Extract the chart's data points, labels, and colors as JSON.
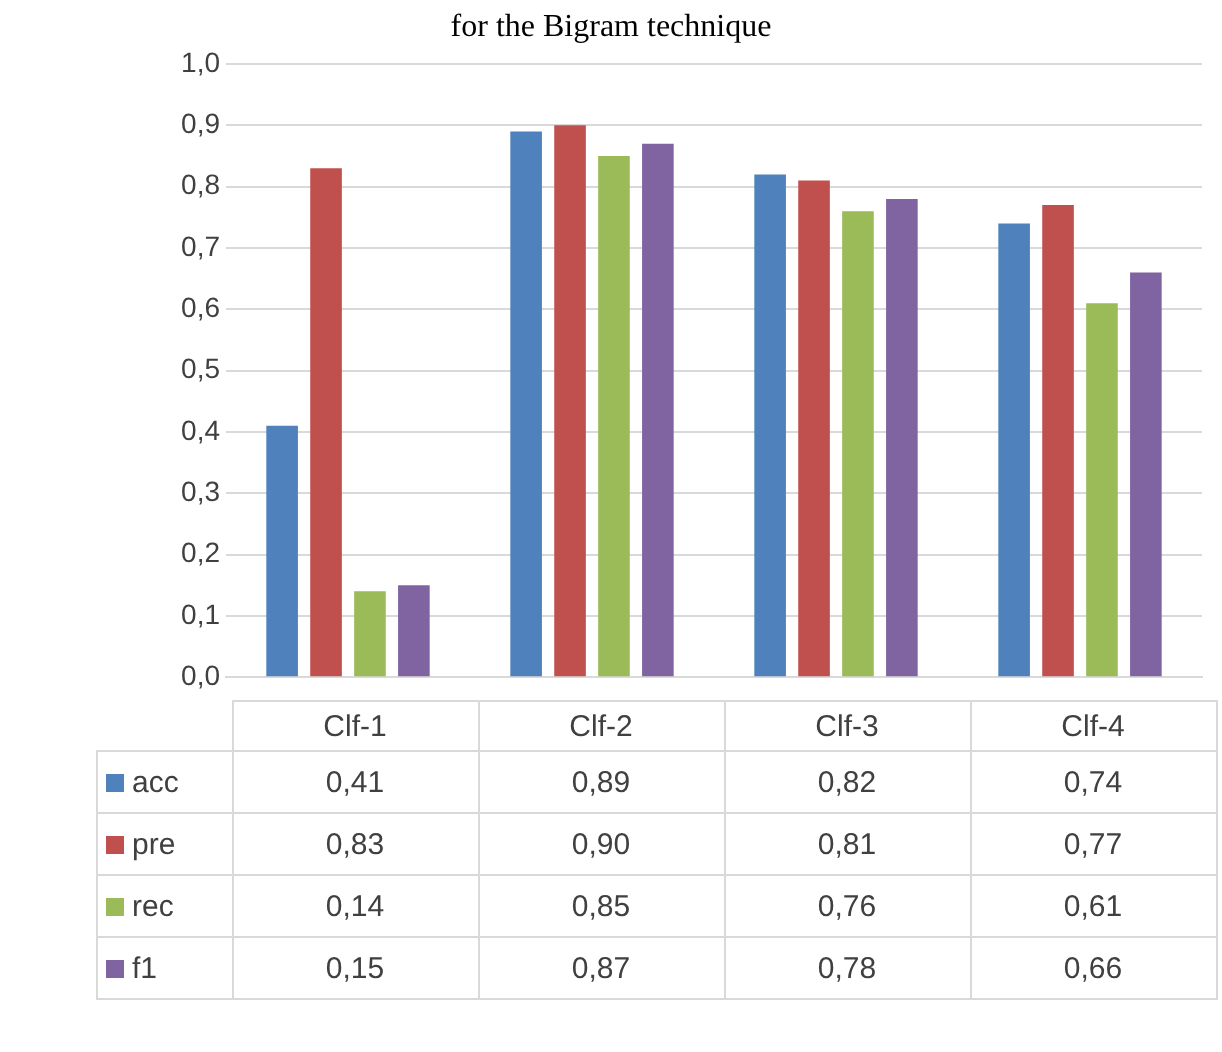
{
  "chart_data": {
    "type": "bar",
    "title": "for the Bigram technique",
    "categories": [
      "Clf-1",
      "Clf-2",
      "Clf-3",
      "Clf-4"
    ],
    "series": [
      {
        "name": "acc",
        "color": "#4f81bd",
        "values": [
          0.41,
          0.89,
          0.82,
          0.74
        ],
        "value_labels": [
          "0,41",
          "0,89",
          "0,82",
          "0,74"
        ]
      },
      {
        "name": "pre",
        "color": "#c0504d",
        "values": [
          0.83,
          0.9,
          0.81,
          0.77
        ],
        "value_labels": [
          "0,83",
          "0,90",
          "0,81",
          "0,77"
        ]
      },
      {
        "name": "rec",
        "color": "#9bbb59",
        "values": [
          0.14,
          0.85,
          0.76,
          0.61
        ],
        "value_labels": [
          "0,14",
          "0,85",
          "0,76",
          "0,61"
        ]
      },
      {
        "name": "f1",
        "color": "#8064a2",
        "values": [
          0.15,
          0.87,
          0.78,
          0.66
        ],
        "value_labels": [
          "0,15",
          "0,87",
          "0,78",
          "0,66"
        ]
      }
    ],
    "ylim": [
      0,
      1
    ],
    "yticks": [
      {
        "value": 0,
        "label": "0,0"
      },
      {
        "value": 0.1,
        "label": "0,1"
      },
      {
        "value": 0.2,
        "label": "0,2"
      },
      {
        "value": 0.3,
        "label": "0,3"
      },
      {
        "value": 0.4,
        "label": "0,4"
      },
      {
        "value": 0.5,
        "label": "0,5"
      },
      {
        "value": 0.6,
        "label": "0,6"
      },
      {
        "value": 0.7,
        "label": "0,7"
      },
      {
        "value": 0.8,
        "label": "0,8"
      },
      {
        "value": 0.9,
        "label": "0,9"
      },
      {
        "value": 1,
        "label": "1,0"
      }
    ],
    "grid": "y",
    "legend": "bottom"
  }
}
